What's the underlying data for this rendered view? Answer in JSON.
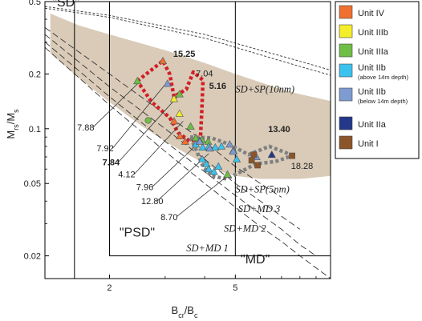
{
  "chart_data": {
    "type": "scatter",
    "title": "",
    "xlabel": "B",
    "xlabel_sub": "cr",
    "xlabel_mid": "/B",
    "xlabel_sub2": "c",
    "ylabel": "M",
    "ylabel_sub": "rs",
    "ylabel_mid": "/M",
    "ylabel_sub2": "s",
    "xscale": "log",
    "yscale": "log",
    "xlim": [
      1.25,
      10
    ],
    "ylim": [
      0.015,
      0.5
    ],
    "xticks": [
      {
        "v": 2,
        "label": "2"
      },
      {
        "v": 5,
        "label": "5"
      }
    ],
    "yticks": [
      {
        "v": 0.5,
        "label": "0.5"
      },
      {
        "v": 0.2,
        "label": "0.2"
      },
      {
        "v": 0.1,
        "label": "0.1"
      },
      {
        "v": 0.05,
        "label": "0.05"
      },
      {
        "v": 0.02,
        "label": "0.02"
      }
    ],
    "regions": [
      {
        "label": "\"SD\"",
        "x": 1.32,
        "y": 0.47
      },
      {
        "label": "\"PSD\"",
        "x": 2.15,
        "y": 0.0255
      },
      {
        "label": "\"MD\"",
        "x": 5.2,
        "y": 0.0182
      }
    ],
    "curve_labels": [
      {
        "label": "SD+SP(10nm)",
        "x": 5.0,
        "y": 0.158
      },
      {
        "label": "SD+SP(5nm)",
        "x": 5.0,
        "y": 0.0445
      },
      {
        "label": "SD+MD 3",
        "x": 5.1,
        "y": 0.0348
      },
      {
        "label": "SD+MD 2",
        "x": 4.6,
        "y": 0.0272
      },
      {
        "label": "SD+MD 1",
        "x": 3.5,
        "y": 0.0212
      }
    ],
    "legend": [
      {
        "label": "Unit IV",
        "sub": "",
        "color": "#f07030",
        "marker": "square"
      },
      {
        "label": "Unit IIIb",
        "sub": "",
        "color": "#f4ee2a",
        "marker": "square"
      },
      {
        "label": "Unit IIIa",
        "sub": "",
        "color": "#6fbe45",
        "marker": "square"
      },
      {
        "label": "Unit IIb",
        "sub": "(above 14m depth)",
        "color": "#3cc2ee",
        "marker": "square"
      },
      {
        "label": "Unit IIb",
        "sub": "(below 14m depth)",
        "color": "#7e9bd2",
        "marker": "square"
      },
      {
        "label": "Unit IIa",
        "sub": "",
        "color": "#24388a",
        "marker": "square"
      },
      {
        "label": "Unit I",
        "sub": "",
        "color": "#8b5529",
        "marker": "square"
      }
    ],
    "series": [
      {
        "color": "#f07030",
        "marker": "triangle",
        "points": [
          [
            2.95,
            0.236
          ],
          [
            3.2,
            0.11
          ],
          [
            3.34,
            0.091
          ],
          [
            3.47,
            0.085
          ]
        ]
      },
      {
        "color": "#f4ee2a",
        "marker": "triangle",
        "points": [
          [
            3.2,
            0.146
          ],
          [
            3.33,
            0.121
          ]
        ]
      },
      {
        "color": "#6fbe45",
        "marker": "triangle",
        "points": [
          [
            2.45,
            0.183
          ],
          [
            3.33,
            0.155
          ],
          [
            3.61,
            0.103
          ],
          [
            3.75,
            0.089
          ],
          [
            3.92,
            0.087
          ],
          [
            4.1,
            0.085
          ],
          [
            4.72,
            0.056
          ]
        ]
      },
      {
        "color": "#6fbe45",
        "marker": "circle",
        "points": [
          [
            2.65,
            0.111
          ]
        ]
      },
      {
        "color": "#3cc2ee",
        "marker": "triangle",
        "points": [
          [
            3.75,
            0.082
          ],
          [
            3.94,
            0.079
          ],
          [
            4.12,
            0.08
          ],
          [
            4.32,
            0.079
          ],
          [
            4.52,
            0.08
          ],
          [
            4.93,
            0.076
          ],
          [
            5.05,
            0.068
          ],
          [
            3.93,
            0.068
          ],
          [
            4.05,
            0.064
          ],
          [
            4.12,
            0.06
          ],
          [
            4.42,
            0.062
          ],
          [
            4.28,
            0.058
          ]
        ]
      },
      {
        "color": "#7e9bd2",
        "marker": "triangle",
        "points": [
          [
            3.05,
            0.177
          ],
          [
            3.86,
            0.086
          ],
          [
            4.15,
            0.078
          ],
          [
            4.8,
            0.082
          ],
          [
            4.92,
            0.075
          ],
          [
            5.83,
            0.07
          ],
          [
            3.86,
            0.085
          ]
        ]
      },
      {
        "color": "#24388a",
        "marker": "triangle",
        "points": [
          [
            6.52,
            0.072
          ]
        ]
      },
      {
        "color": "#8b5529",
        "marker": "square",
        "points": [
          [
            5.63,
            0.067
          ],
          [
            5.72,
            0.072
          ],
          [
            5.88,
            0.063
          ],
          [
            7.56,
            0.071
          ]
        ]
      }
    ],
    "point_labels": [
      {
        "label": "15.25",
        "bold": true,
        "x": 3.18,
        "y": 0.248
      },
      {
        "label": "7.04",
        "bold": false,
        "x": 3.75,
        "y": 0.194
      },
      {
        "label": "5.16",
        "bold": true,
        "x": 4.13,
        "y": 0.166
      },
      {
        "label": "13.40",
        "bold": true,
        "x": 6.35,
        "y": 0.096
      },
      {
        "label": "18.28",
        "bold": false,
        "x": 7.5,
        "y": 0.06
      }
    ],
    "callouts": [
      {
        "label": "7.88",
        "bold": false,
        "tx": 1.58,
        "ty": 0.098,
        "px": 2.45,
        "py": 0.176
      },
      {
        "label": "7.92",
        "bold": false,
        "tx": 1.82,
        "ty": 0.075,
        "px": 3.0,
        "py": 0.175
      },
      {
        "label": "7.84",
        "bold": true,
        "tx": 1.9,
        "ty": 0.063,
        "px": 3.28,
        "py": 0.15
      },
      {
        "label": "4.12",
        "bold": false,
        "tx": 2.13,
        "ty": 0.054,
        "px": 3.42,
        "py": 0.11
      },
      {
        "label": "7.96",
        "bold": false,
        "tx": 2.43,
        "ty": 0.046,
        "px": 3.84,
        "py": 0.084
      },
      {
        "label": "12.80",
        "bold": false,
        "tx": 2.52,
        "ty": 0.0385,
        "px": 4.12,
        "py": 0.073
      },
      {
        "label": "8.70",
        "bold": false,
        "tx": 2.9,
        "ty": 0.0315,
        "px": 4.72,
        "py": 0.055
      }
    ]
  }
}
